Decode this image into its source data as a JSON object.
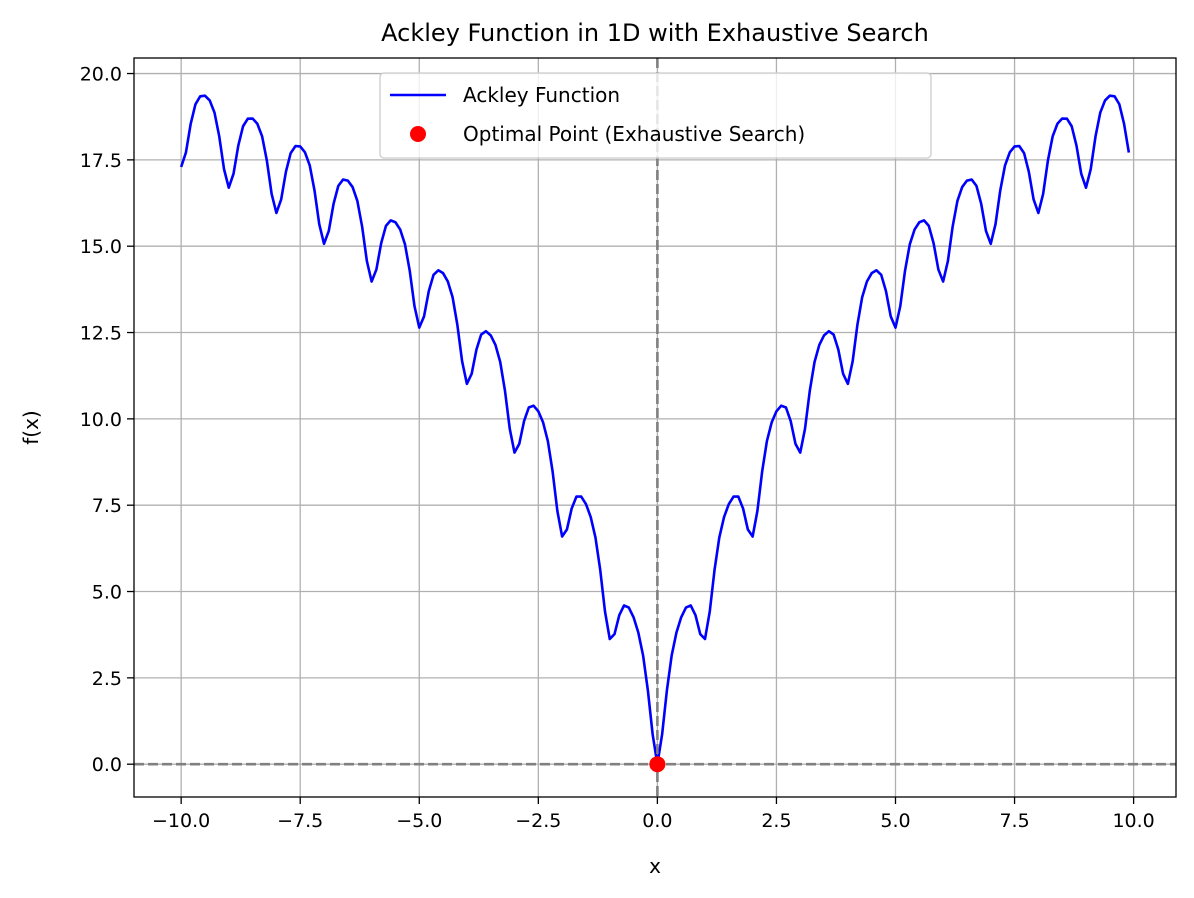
{
  "chart_data": {
    "type": "line",
    "title": "Ackley Function in 1D with Exhaustive Search",
    "xlabel": "x",
    "ylabel": "f(x)",
    "xlim": [
      -10.99,
      10.89
    ],
    "ylim": [
      -0.95,
      20.45
    ],
    "x_ticks": [
      -10.0,
      -7.5,
      -5.0,
      -2.5,
      0.0,
      2.5,
      5.0,
      7.5,
      10.0
    ],
    "x_tick_labels": [
      "−10.0",
      "−7.5",
      "−5.0",
      "−2.5",
      "0.0",
      "2.5",
      "5.0",
      "7.5",
      "10.0"
    ],
    "y_ticks": [
      0.0,
      2.5,
      5.0,
      7.5,
      10.0,
      12.5,
      15.0,
      17.5,
      20.0
    ],
    "y_tick_labels": [
      "0.0",
      "2.5",
      "5.0",
      "7.5",
      "10.0",
      "12.5",
      "15.0",
      "17.5",
      "20.0"
    ],
    "grid": true,
    "legend_position": "upper center",
    "series": [
      {
        "name": "Ackley Function",
        "kind": "line",
        "color": "#0000ff",
        "x_start": -10.0,
        "x_end": 9.9,
        "x_step": 0.1,
        "function": "ackley-1d (a=20, b=0.2, c=2*pi)"
      },
      {
        "name": "Optimal Point (Exhaustive Search)",
        "kind": "scatter",
        "color": "#ff0000",
        "x": [
          0.0
        ],
        "y": [
          0.0
        ]
      }
    ],
    "reference_lines": [
      {
        "orientation": "horizontal",
        "value": 0.0,
        "style": "dashed",
        "color": "#808080"
      },
      {
        "orientation": "vertical",
        "value": 0.0,
        "style": "dashed",
        "color": "#808080"
      }
    ]
  }
}
